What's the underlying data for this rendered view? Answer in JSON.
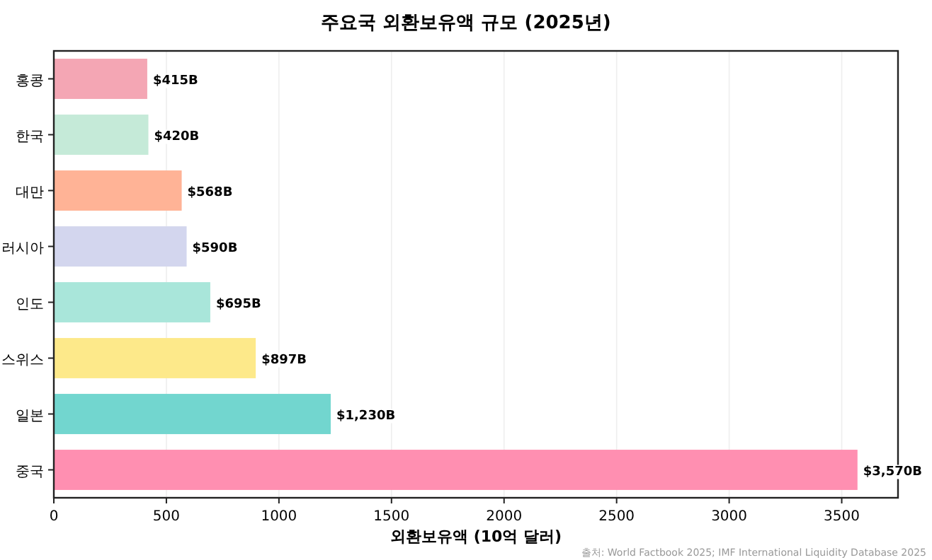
{
  "chart_data": {
    "type": "bar",
    "orientation": "horizontal",
    "title": "주요국 외환보유액 규모 (2025년)",
    "xlabel": "외환보유액 (10억 달러)",
    "categories": [
      "홍콩",
      "한국",
      "대만",
      "러시아",
      "인도",
      "스위스",
      "일본",
      "중국"
    ],
    "values": [
      415,
      420,
      568,
      590,
      695,
      897,
      1230,
      3570
    ],
    "colors": [
      "#f4a6b4",
      "#c5ead8",
      "#ffb396",
      "#d3d6ee",
      "#a9e6da",
      "#fde98a",
      "#72d6cf",
      "#ff8fb1"
    ],
    "value_labels": [
      "$415B",
      "$420B",
      "$568B",
      "$590B",
      "$695B",
      "$897B",
      "$1,230B",
      "$3,570B"
    ],
    "xlim": [
      0,
      3750
    ],
    "xticks": [
      0,
      500,
      1000,
      1500,
      2000,
      2500,
      3000,
      3500
    ],
    "grid": "x",
    "annotations": [
      "출처: World Factbook 2025; IMF International Liquidity Database 2025"
    ]
  }
}
